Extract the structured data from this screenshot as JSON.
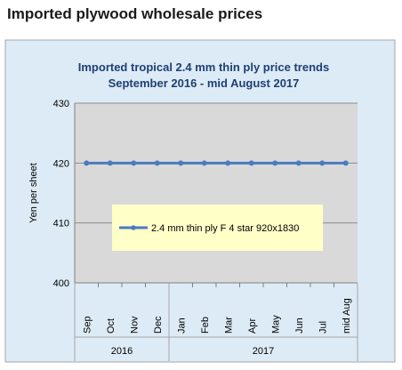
{
  "page": {
    "heading": "Imported plywood wholesale prices"
  },
  "colors": {
    "frame_bg": "#dcebf5",
    "plot_bg": "#d9d9d9",
    "series": "#4a7bbf",
    "legend_bg": "#ffffc8",
    "title": "#1f3f73"
  },
  "chart_data": {
    "type": "line",
    "title_lines": [
      "Imported tropical 2.4 mm thin ply price trends",
      "September 2016 - mid August 2017"
    ],
    "xlabel": "",
    "ylabel": "Yen per sheet",
    "ylim": [
      400,
      430
    ],
    "yticks": [
      400,
      410,
      420,
      430
    ],
    "grid": true,
    "legend_position": "center",
    "categories": [
      "Sep",
      "Oct",
      "Nov",
      "Dec",
      "Jan",
      "Feb",
      "Mar",
      "Apr",
      "May",
      "Jun",
      "Jul",
      "mid Aug"
    ],
    "category_groups": [
      {
        "label": "2016",
        "count": 4
      },
      {
        "label": "2017",
        "count": 8
      }
    ],
    "series": [
      {
        "name": "2.4 mm thin ply F 4 star 920x1830",
        "values": [
          420,
          420,
          420,
          420,
          420,
          420,
          420,
          420,
          420,
          420,
          420,
          420
        ]
      }
    ]
  }
}
